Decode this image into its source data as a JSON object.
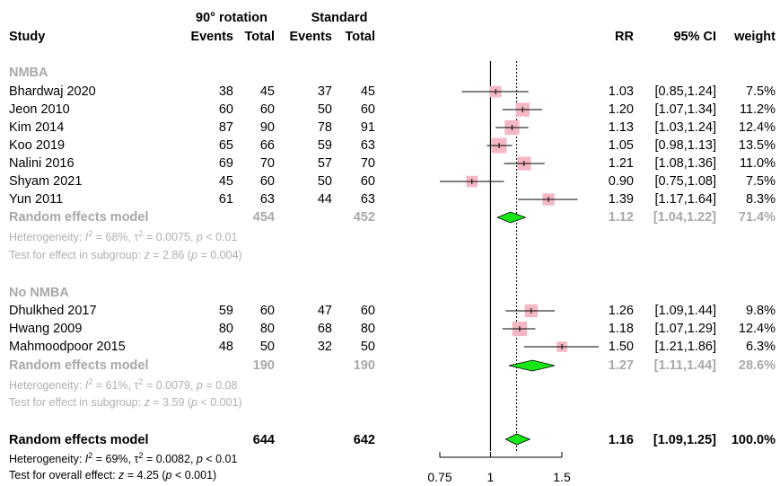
{
  "header": {
    "group1": "90° rotation",
    "group2": "Standard",
    "study": "Study",
    "events": "Events",
    "total": "Total",
    "rr": "RR",
    "ci": "95% CI",
    "weight": "weight"
  },
  "subgroups": [
    {
      "title": "NMBA",
      "studies": [
        {
          "study": "Bhardwaj 2020",
          "e1": "38",
          "n1": "45",
          "e2": "37",
          "n2": "45",
          "rr": "1.03",
          "ci": "[0.85,1.24]",
          "weight": "7.5%"
        },
        {
          "study": "Jeon 2010",
          "e1": "60",
          "n1": "60",
          "e2": "50",
          "n2": "60",
          "rr": "1.20",
          "ci": "[1.07,1.34]",
          "weight": "11.2%"
        },
        {
          "study": "Kim 2014",
          "e1": "87",
          "n1": "90",
          "e2": "78",
          "n2": "91",
          "rr": "1.13",
          "ci": "[1.03,1.24]",
          "weight": "12.4%"
        },
        {
          "study": "Koo 2019",
          "e1": "65",
          "n1": "66",
          "e2": "59",
          "n2": "63",
          "rr": "1.05",
          "ci": "[0.98,1.13]",
          "weight": "13.5%"
        },
        {
          "study": "Nalini 2016",
          "e1": "69",
          "n1": "70",
          "e2": "57",
          "n2": "70",
          "rr": "1.21",
          "ci": "[1.08,1.36]",
          "weight": "11.0%"
        },
        {
          "study": "Shyam 2021",
          "e1": "45",
          "n1": "60",
          "e2": "50",
          "n2": "60",
          "rr": "0.90",
          "ci": "[0.75,1.08]",
          "weight": "7.5%"
        },
        {
          "study": "Yun 2011",
          "e1": "61",
          "n1": "63",
          "e2": "44",
          "n2": "63",
          "rr": "1.39",
          "ci": "[1.17,1.64]",
          "weight": "8.3%"
        }
      ],
      "model": {
        "label": "Random effects model",
        "n1": "454",
        "n2": "452",
        "rr": "1.12",
        "ci": "[1.04,1.22]",
        "weight": "71.4%"
      },
      "het": {
        "i2": "68%",
        "tau2": "0.0075",
        "p": "< 0.01"
      },
      "test": {
        "z": "2.86",
        "p": "0.004"
      }
    },
    {
      "title": "No NMBA",
      "studies": [
        {
          "study": "Dhulkhed 2017",
          "e1": "59",
          "n1": "60",
          "e2": "47",
          "n2": "60",
          "rr": "1.26",
          "ci": "[1.09,1.44]",
          "weight": "9.8%"
        },
        {
          "study": "Hwang 2009",
          "e1": "80",
          "n1": "80",
          "e2": "68",
          "n2": "80",
          "rr": "1.18",
          "ci": "[1.07,1.29]",
          "weight": "12.4%"
        },
        {
          "study": "Mahmoodpoor 2015",
          "e1": "48",
          "n1": "50",
          "e2": "32",
          "n2": "50",
          "rr": "1.50",
          "ci": "[1.21,1.86]",
          "weight": "6.3%"
        }
      ],
      "model": {
        "label": "Random effects model",
        "n1": "190",
        "n2": "190",
        "rr": "1.27",
        "ci": "[1.11,1.44]",
        "weight": "28.6%"
      },
      "het": {
        "i2": "61%",
        "tau2": "0.0079",
        "p": "= 0.08"
      },
      "test": {
        "z": "3.59",
        "p": "< 0.001"
      }
    }
  ],
  "overall": {
    "label": "Random effects model",
    "n1": "644",
    "n2": "642",
    "rr": "1.16",
    "ci": "[1.09,1.25]",
    "weight": "100.0%",
    "het": {
      "i2": "69%",
      "tau2": "0.0082",
      "p": "< 0.01"
    },
    "test": {
      "z": "4.25",
      "p": "< 0.001"
    }
  },
  "chart_data": {
    "type": "forest",
    "measure": "RR",
    "scale": "log",
    "xlim": [
      0.75,
      1.5
    ],
    "ticks": [
      "0.75",
      "1",
      "1.5"
    ],
    "tick_values": [
      0.75,
      1,
      1.5
    ],
    "null_value": 1,
    "overall_value": 1.16,
    "colors": {
      "square": "#f4b8c4",
      "diamond": "#19e619",
      "line": "#000000"
    },
    "points": [
      {
        "label": "Bhardwaj 2020",
        "rr": 1.03,
        "lo": 0.85,
        "hi": 1.24,
        "w": 7.5
      },
      {
        "label": "Jeon 2010",
        "rr": 1.2,
        "lo": 1.07,
        "hi": 1.34,
        "w": 11.2
      },
      {
        "label": "Kim 2014",
        "rr": 1.13,
        "lo": 1.03,
        "hi": 1.24,
        "w": 12.4
      },
      {
        "label": "Koo 2019",
        "rr": 1.05,
        "lo": 0.98,
        "hi": 1.13,
        "w": 13.5
      },
      {
        "label": "Nalini 2016",
        "rr": 1.21,
        "lo": 1.08,
        "hi": 1.36,
        "w": 11.0
      },
      {
        "label": "Shyam 2021",
        "rr": 0.9,
        "lo": 0.75,
        "hi": 1.08,
        "w": 7.5
      },
      {
        "label": "Yun 2011",
        "rr": 1.39,
        "lo": 1.17,
        "hi": 1.64,
        "w": 8.3
      },
      {
        "label": "Random effects model (NMBA)",
        "rr": 1.12,
        "lo": 1.04,
        "hi": 1.22,
        "diamond": true
      },
      {
        "label": "Dhulkhed 2017",
        "rr": 1.26,
        "lo": 1.09,
        "hi": 1.44,
        "w": 9.8
      },
      {
        "label": "Hwang 2009",
        "rr": 1.18,
        "lo": 1.07,
        "hi": 1.29,
        "w": 12.4
      },
      {
        "label": "Mahmoodpoor 2015",
        "rr": 1.5,
        "lo": 1.21,
        "hi": 1.86,
        "w": 6.3
      },
      {
        "label": "Random effects model (No NMBA)",
        "rr": 1.27,
        "lo": 1.11,
        "hi": 1.44,
        "diamond": true
      },
      {
        "label": "Random effects model (overall)",
        "rr": 1.16,
        "lo": 1.09,
        "hi": 1.25,
        "diamond": true
      }
    ]
  }
}
